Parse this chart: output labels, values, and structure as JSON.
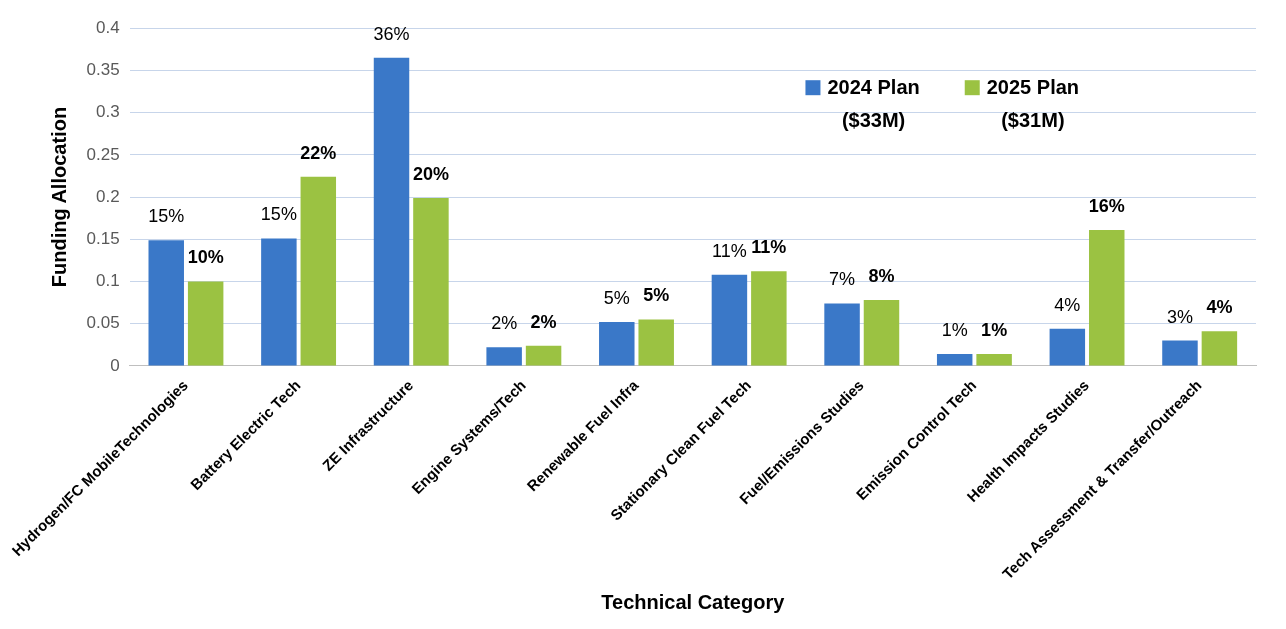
{
  "chart_data": {
    "type": "bar",
    "xlabel": "Technical Category",
    "ylabel": "Funding Allocation",
    "categories": [
      "Hydrogen/FC MobileTechnologies",
      "Battery Electric Tech",
      "ZE Infrastructure",
      "Engine Systems/Tech",
      "Renewable Fuel Infra",
      "Stationary Clean Fuel Tech",
      "Fuel/Emissions Studies",
      "Emission Control Tech",
      "Health Impacts Studies",
      "Tech Assessment & Transfer/Outreach"
    ],
    "series": [
      {
        "name": "2024 Plan ($33M)",
        "color": "#3a78c8",
        "values": [
          0.149,
          0.151,
          0.365,
          0.022,
          0.052,
          0.108,
          0.074,
          0.014,
          0.044,
          0.03
        ],
        "value_labels": [
          "15%",
          "15%",
          "36%",
          "2%",
          "5%",
          "11%",
          "7%",
          "1%",
          "4%",
          "3%"
        ]
      },
      {
        "name": "2025 Plan ($31M)",
        "color": "#9bc242",
        "values": [
          0.1,
          0.224,
          0.199,
          0.024,
          0.055,
          0.112,
          0.078,
          0.014,
          0.161,
          0.041
        ],
        "value_labels": [
          "10%",
          "22%",
          "20%",
          "2%",
          "5%",
          "11%",
          "8%",
          "1%",
          "16%",
          "4%"
        ]
      }
    ],
    "ylim": [
      0,
      0.4
    ],
    "yticks": [
      0,
      0.05,
      0.1,
      0.15,
      0.2,
      0.25,
      0.3,
      0.35,
      0.4
    ],
    "grid": "y",
    "legend": "top right"
  }
}
